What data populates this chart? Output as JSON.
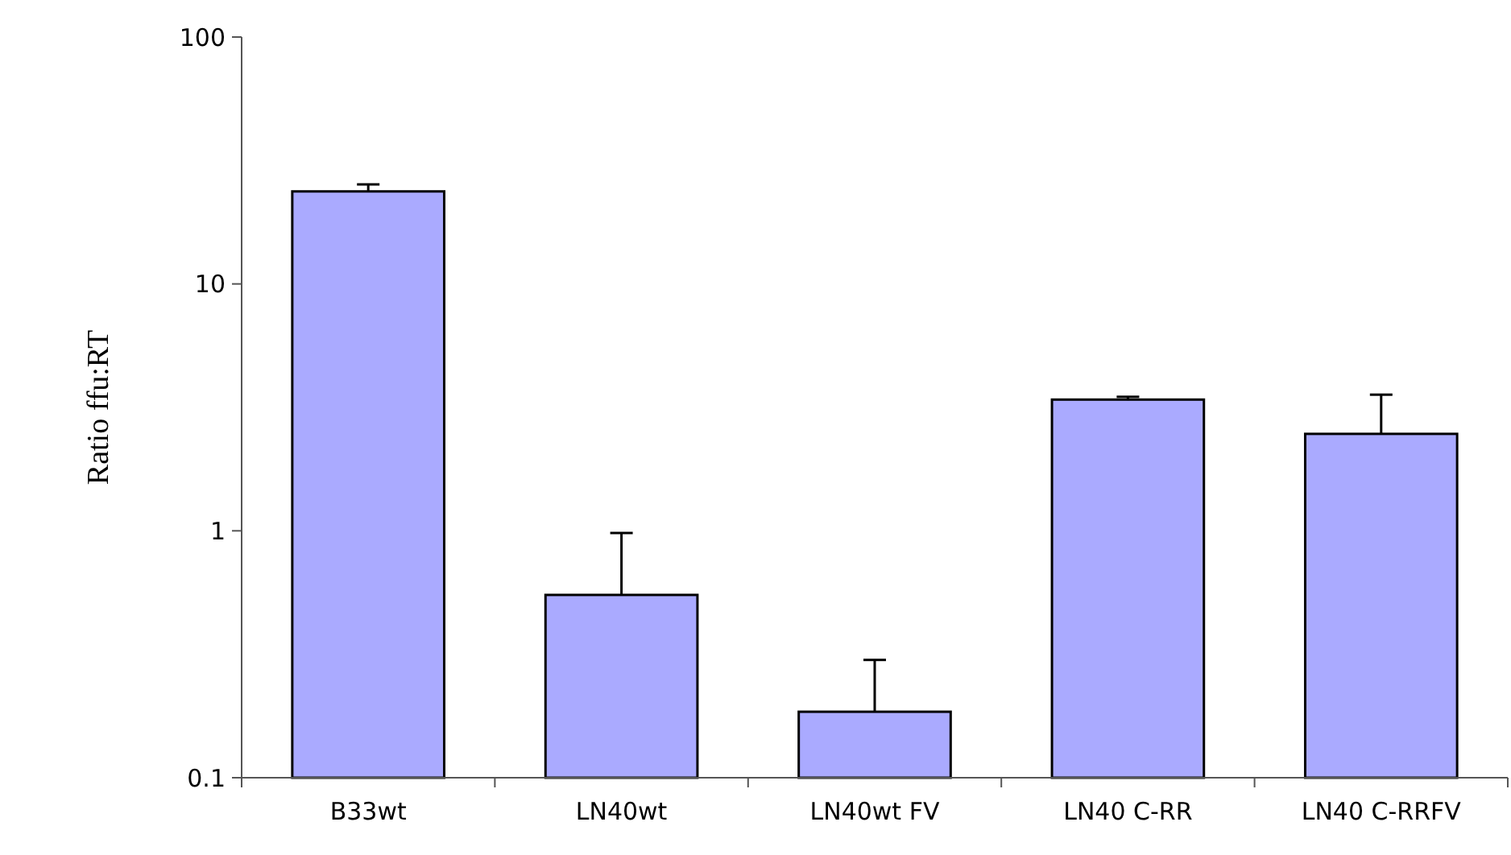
{
  "chart_data": {
    "type": "bar",
    "ylabel": "Ratio ffu:RT",
    "categories": [
      "B33wt",
      "LN40wt",
      "LN40wt FV",
      "LN40 C-RR",
      "LN40 C-RRFV"
    ],
    "values": [
      23.7,
      0.55,
      0.185,
      3.4,
      2.47
    ],
    "errors": [
      [
        23.7,
        25.3
      ],
      [
        0.55,
        0.98
      ],
      [
        0.185,
        0.3
      ],
      [
        3.4,
        3.49
      ],
      [
        2.47,
        3.56
      ]
    ],
    "color": "#aaaaff",
    "log": true,
    "ylim": [
      0.1,
      100
    ],
    "yticks": [
      0.1,
      1,
      10,
      100
    ],
    "grid": false
  }
}
